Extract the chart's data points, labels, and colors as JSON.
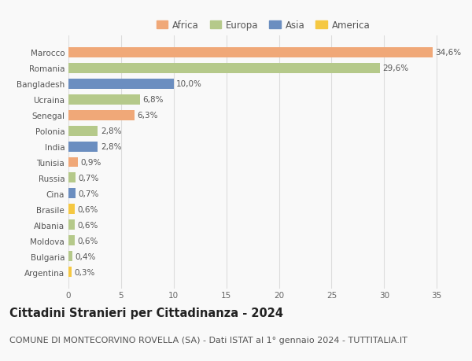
{
  "countries": [
    "Marocco",
    "Romania",
    "Bangladesh",
    "Ucraina",
    "Senegal",
    "Polonia",
    "India",
    "Tunisia",
    "Russia",
    "Cina",
    "Brasile",
    "Albania",
    "Moldova",
    "Bulgaria",
    "Argentina"
  ],
  "values": [
    34.6,
    29.6,
    10.0,
    6.8,
    6.3,
    2.8,
    2.8,
    0.9,
    0.7,
    0.7,
    0.6,
    0.6,
    0.6,
    0.4,
    0.3
  ],
  "labels": [
    "34,6%",
    "29,6%",
    "10,0%",
    "6,8%",
    "6,3%",
    "2,8%",
    "2,8%",
    "0,9%",
    "0,7%",
    "0,7%",
    "0,6%",
    "0,6%",
    "0,6%",
    "0,4%",
    "0,3%"
  ],
  "continents": [
    "Africa",
    "Europa",
    "Asia",
    "Europa",
    "Africa",
    "Europa",
    "Asia",
    "Africa",
    "Europa",
    "Asia",
    "America",
    "Europa",
    "Europa",
    "Europa",
    "America"
  ],
  "continent_colors": {
    "Africa": "#F0A878",
    "Europa": "#B5C98A",
    "Asia": "#6B8EC0",
    "America": "#F5C842"
  },
  "legend_order": [
    "Africa",
    "Europa",
    "Asia",
    "America"
  ],
  "title": "Cittadini Stranieri per Cittadinanza - 2024",
  "subtitle": "COMUNE DI MONTECORVINO ROVELLA (SA) - Dati ISTAT al 1° gennaio 2024 - TUTTITALIA.IT",
  "xlim": [
    0,
    37
  ],
  "xticks": [
    0,
    5,
    10,
    15,
    20,
    25,
    30,
    35
  ],
  "background_color": "#f9f9f9",
  "grid_color": "#dddddd",
  "bar_height": 0.65,
  "title_fontsize": 10.5,
  "subtitle_fontsize": 8,
  "label_fontsize": 7.5,
  "tick_fontsize": 7.5,
  "legend_fontsize": 8.5
}
